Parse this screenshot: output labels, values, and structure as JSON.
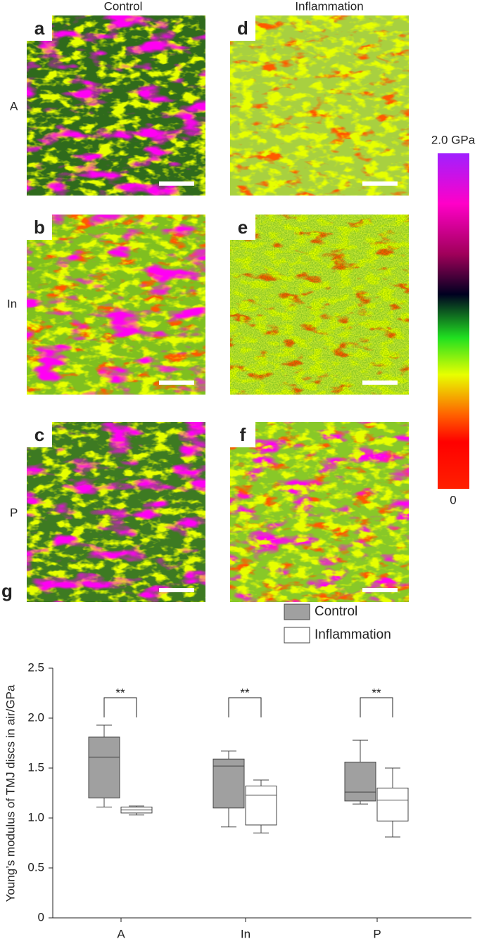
{
  "figure": {
    "columns": [
      "Control",
      "Inflammation"
    ],
    "rows": [
      "A",
      "In",
      "P"
    ],
    "panels": [
      "a",
      "b",
      "c",
      "d",
      "e",
      "f"
    ],
    "colorbar": {
      "top": "2.0 GPa",
      "bottom": "0"
    }
  },
  "chart_data": {
    "type": "box",
    "panel": "g",
    "ylabel": "Young’s modulus of TMJ discs in air/GPa",
    "categories": [
      "A",
      "In",
      "P"
    ],
    "ylim": [
      0,
      2.5
    ],
    "yticks": [
      0,
      0.5,
      {
        "value": 1,
        "label": "1.0"
      },
      1.5,
      {
        "value": 2,
        "label": "2.0"
      },
      2.5
    ],
    "annotations": [
      "**",
      "**",
      "**"
    ],
    "series": [
      {
        "name": "Control",
        "color": "#a0a0a0",
        "min": [
          1.11,
          0.91,
          1.14
        ],
        "q1": [
          1.2,
          1.1,
          1.17
        ],
        "median": [
          1.61,
          1.52,
          1.26
        ],
        "q3": [
          1.81,
          1.59,
          1.56
        ],
        "max": [
          1.93,
          1.67,
          1.78
        ]
      },
      {
        "name": "Inflammation",
        "color": "#ffffff",
        "min": [
          1.03,
          0.85,
          0.81
        ],
        "q1": [
          1.05,
          0.93,
          0.97
        ],
        "median": [
          1.08,
          1.23,
          1.18
        ],
        "q3": [
          1.11,
          1.32,
          1.3
        ],
        "max": [
          1.12,
          1.38,
          1.5
        ]
      }
    ]
  }
}
